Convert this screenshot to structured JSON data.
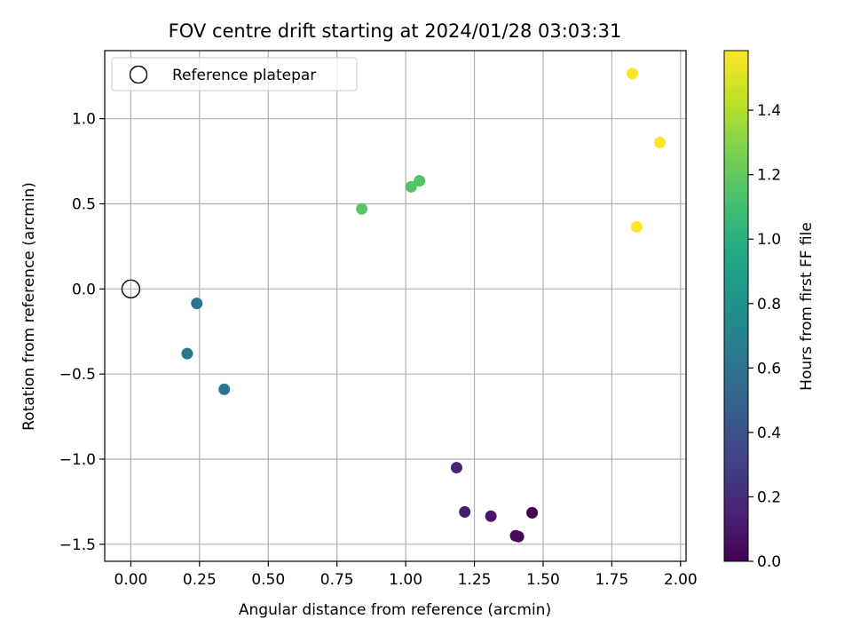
{
  "chart_data": {
    "type": "scatter",
    "title": "FOV centre drift starting at 2024/01/28 03:03:31",
    "xlabel": "Angular distance from reference (arcmin)",
    "ylabel": "Rotation from reference (arcmin)",
    "xlim": [
      -0.095,
      2.02
    ],
    "ylim": [
      -1.6,
      1.4
    ],
    "xticks": [
      0.0,
      0.25,
      0.5,
      0.75,
      1.0,
      1.25,
      1.5,
      1.75,
      2.0
    ],
    "xtick_labels": [
      "0.00",
      "0.25",
      "0.50",
      "0.75",
      "1.00",
      "1.25",
      "1.50",
      "1.75",
      "2.00"
    ],
    "yticks": [
      -1.5,
      -1.0,
      -0.5,
      0.0,
      0.5,
      1.0
    ],
    "ytick_labels": [
      "−1.5",
      "−1.0",
      "−0.5",
      "0.0",
      "0.5",
      "1.0"
    ],
    "grid": true,
    "legend": {
      "placement": "upper-left",
      "entries": [
        {
          "label": "Reference platepar",
          "marker": "open-circle"
        }
      ]
    },
    "reference_point": {
      "x": 0.0,
      "y": 0.0
    },
    "colorbar": {
      "label": "Hours from first FF file",
      "colormap": "viridis",
      "range": [
        0.0,
        1.585
      ],
      "ticks": [
        0.0,
        0.2,
        0.4,
        0.6,
        0.8,
        1.0,
        1.2,
        1.4
      ],
      "tick_labels": [
        "0.0",
        "0.2",
        "0.4",
        "0.6",
        "0.8",
        "1.0",
        "1.2",
        "1.4"
      ]
    },
    "points": [
      {
        "x": 1.46,
        "y": -1.315,
        "hours": 0.0
      },
      {
        "x": 1.41,
        "y": -1.455,
        "hours": 0.02
      },
      {
        "x": 1.4,
        "y": -1.45,
        "hours": 0.04
      },
      {
        "x": 1.31,
        "y": -1.335,
        "hours": 0.1
      },
      {
        "x": 1.215,
        "y": -1.31,
        "hours": 0.12
      },
      {
        "x": 1.185,
        "y": -1.05,
        "hours": 0.15
      },
      {
        "x": 0.34,
        "y": -0.59,
        "hours": 0.62
      },
      {
        "x": 0.205,
        "y": -0.38,
        "hours": 0.64
      },
      {
        "x": 0.24,
        "y": -0.085,
        "hours": 0.62
      },
      {
        "x": 0.84,
        "y": 0.47,
        "hours": 1.18
      },
      {
        "x": 1.02,
        "y": 0.6,
        "hours": 1.15
      },
      {
        "x": 1.05,
        "y": 0.635,
        "hours": 1.15
      },
      {
        "x": 1.825,
        "y": 1.265,
        "hours": 1.585
      },
      {
        "x": 1.925,
        "y": 0.86,
        "hours": 1.585
      },
      {
        "x": 1.84,
        "y": 0.365,
        "hours": 1.585
      }
    ]
  }
}
